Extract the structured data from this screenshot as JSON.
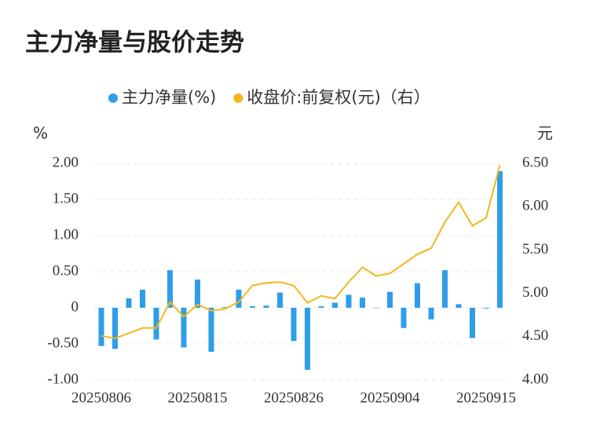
{
  "chart_data": {
    "type": "bar-line",
    "title": "主力净量与股价走势",
    "y_label": "%",
    "y2_label": "元",
    "categories": [
      "20250806",
      null,
      null,
      null,
      null,
      null,
      null,
      "20250815",
      null,
      null,
      null,
      null,
      null,
      null,
      "20250826",
      null,
      null,
      null,
      null,
      null,
      null,
      "20250904",
      null,
      null,
      null,
      null,
      null,
      null,
      "20250915",
      null
    ],
    "series": [
      {
        "name": "主力净量(%)",
        "type": "bar",
        "color": "#2e9ee8",
        "values": [
          -0.53,
          -0.57,
          0.13,
          0.25,
          -0.44,
          0.52,
          -0.55,
          0.39,
          -0.61,
          0.01,
          0.25,
          0.02,
          0.03,
          0.21,
          -0.46,
          -0.86,
          0.02,
          0.07,
          0.18,
          0.14,
          0,
          0.22,
          -0.28,
          0.34,
          -0.16,
          0.52,
          0.05,
          -0.42,
          -0.01,
          1.89
        ]
      },
      {
        "name": "收盘价:前复权(元)（右）",
        "type": "line",
        "axis": "y2",
        "color": "#f4b71a",
        "values": [
          4.51,
          4.48,
          4.54,
          4.6,
          4.6,
          4.9,
          4.73,
          4.87,
          4.8,
          4.82,
          4.9,
          5.09,
          5.12,
          5.13,
          5.09,
          4.89,
          4.97,
          4.94,
          5.13,
          5.3,
          5.2,
          5.23,
          5.34,
          5.45,
          5.52,
          5.82,
          6.05,
          5.78,
          5.87,
          6.48
        ]
      }
    ],
    "ylim": [
      -1,
      2
    ],
    "yticks": [
      {
        "value": 2,
        "label": "2.00"
      },
      {
        "value": 1.5,
        "label": "1.50"
      },
      {
        "value": 1,
        "label": "1.00"
      },
      {
        "value": 0.5,
        "label": "0.50"
      },
      0,
      {
        "value": -0.5,
        "label": "-0.50"
      },
      {
        "value": -1,
        "label": "-1.00"
      }
    ],
    "y2lim": [
      4,
      6.5
    ],
    "y2ticks": [
      {
        "value": 6.5,
        "label": "6.50"
      },
      {
        "value": 6,
        "label": "6.00"
      },
      {
        "value": 5.5,
        "label": "5.50"
      },
      {
        "value": 5,
        "label": "5.00"
      },
      {
        "value": 4.5,
        "label": "4.50"
      },
      {
        "value": 4,
        "label": "4.00"
      }
    ],
    "grid": true
  }
}
